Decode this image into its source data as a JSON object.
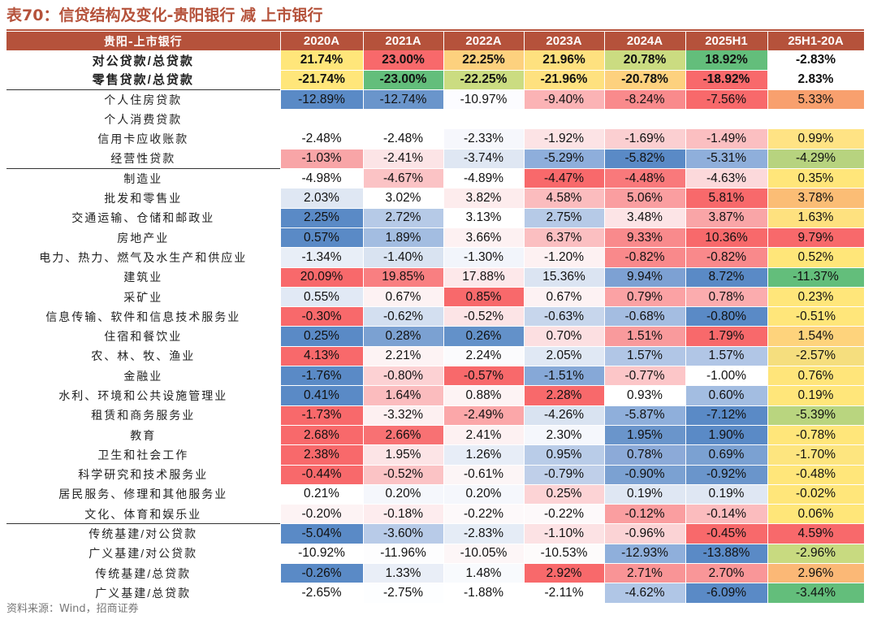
{
  "title": "表70：信贷结构及变化-贵阳银行 减 上市银行",
  "header": {
    "label": "贵阳-上市银行",
    "columns": [
      "2020A",
      "2021A",
      "2022A",
      "2023A",
      "2024A",
      "2025H1",
      "25H1-20A"
    ]
  },
  "rows": [
    {
      "label": "对公贷款/总贷款",
      "bold": true,
      "values": [
        "21.74%",
        "23.00%",
        "22.25%",
        "21.96%",
        "20.78%",
        "18.92%",
        "-2.83%"
      ],
      "colors": [
        "#ffe67a",
        "#f8696b",
        "#fdd17e",
        "#fee17f",
        "#cbdc81",
        "#63be7b",
        "#ffffff"
      ]
    },
    {
      "label": "零售贷款/总贷款",
      "bold": true,
      "values": [
        "-21.74%",
        "-23.00%",
        "-22.25%",
        "-21.96%",
        "-20.78%",
        "-18.92%",
        "2.83%"
      ],
      "colors": [
        "#ffe67a",
        "#63be7b",
        "#cbdc81",
        "#fee17f",
        "#fdd17e",
        "#f8696b",
        "#ffffff"
      ]
    },
    {
      "label": "个人住房贷款",
      "sep": true,
      "values": [
        "-12.89%",
        "-12.74%",
        "-10.97%",
        "-9.40%",
        "-8.24%",
        "-7.56%",
        "5.33%"
      ],
      "colors": [
        "#5a8ac6",
        "#6a95cb",
        "#fcfcff",
        "#fbb3b5",
        "#f98a8c",
        "#f8696b",
        "#f8a06e"
      ]
    },
    {
      "label": "个人消费贷款",
      "values": [
        "",
        "",
        "",
        "",
        "",
        "",
        ""
      ],
      "colors": [
        "#ffffff",
        "#ffffff",
        "#ffffff",
        "#ffffff",
        "#ffffff",
        "#ffffff",
        "#ffffff"
      ]
    },
    {
      "label": "信用卡应收账款",
      "values": [
        "-2.48%",
        "-2.48%",
        "-2.33%",
        "-1.92%",
        "-1.69%",
        "-1.49%",
        "0.99%"
      ],
      "colors": [
        "#ffffff",
        "#ffffff",
        "#f6f7fc",
        "#fce3e5",
        "#fbcfd1",
        "#fbbfc1",
        "#ffe384"
      ]
    },
    {
      "label": "经营性贷款",
      "values": [
        "-1.03%",
        "-2.41%",
        "-3.74%",
        "-5.29%",
        "-5.82%",
        "-5.31%",
        "-4.29%"
      ],
      "colors": [
        "#f8a5a7",
        "#fce4e6",
        "#dfe7f3",
        "#8eaedb",
        "#5a8ac6",
        "#8fafdb",
        "#b7d37f"
      ]
    },
    {
      "label": "制造业",
      "sep": true,
      "values": [
        "-4.98%",
        "-4.67%",
        "-4.89%",
        "-4.47%",
        "-4.48%",
        "-4.63%",
        "0.35%"
      ],
      "colors": [
        "#ffffff",
        "#fbc3c5",
        "#ffffff",
        "#f8696b",
        "#f9797b",
        "#fcd9db",
        "#ffe67a"
      ]
    },
    {
      "label": "批发和零售业",
      "values": [
        "2.03%",
        "3.02%",
        "3.82%",
        "4.58%",
        "5.06%",
        "5.81%",
        "3.78%"
      ],
      "colors": [
        "#dfe7f3",
        "#ffffff",
        "#fdeced",
        "#fbbcbe",
        "#fa9ea0",
        "#f8696b",
        "#fbbd75"
      ]
    },
    {
      "label": "交通运输、仓储和邮政业",
      "values": [
        "2.25%",
        "2.72%",
        "3.13%",
        "2.75%",
        "3.48%",
        "3.87%",
        "1.63%"
      ],
      "colors": [
        "#5a8ac6",
        "#b6cae7",
        "#ffffff",
        "#b6cae7",
        "#fce4e6",
        "#f9a5a7",
        "#fee17f"
      ]
    },
    {
      "label": "房地产业",
      "values": [
        "0.57%",
        "1.89%",
        "3.66%",
        "6.37%",
        "9.33%",
        "10.36%",
        "9.79%"
      ],
      "colors": [
        "#5a8ac6",
        "#a3bde1",
        "#fdf1f2",
        "#fbbfc1",
        "#f98a8c",
        "#f8696b",
        "#f8696b"
      ]
    },
    {
      "label": "电力、热力、燃气及水生产和供应业",
      "values": [
        "-1.34%",
        "-1.40%",
        "-1.30%",
        "-1.20%",
        "-0.82%",
        "-0.82%",
        "0.52%"
      ],
      "colors": [
        "#e8eef7",
        "#d9e3f1",
        "#f2f5fb",
        "#fdf1f2",
        "#f9898b",
        "#f9898b",
        "#ffe679"
      ]
    },
    {
      "label": "建筑业",
      "values": [
        "20.09%",
        "19.85%",
        "17.88%",
        "15.36%",
        "9.94%",
        "8.72%",
        "-11.37%"
      ],
      "colors": [
        "#f8696b",
        "#f97f81",
        "#fde8ea",
        "#dbe4f2",
        "#7da1d3",
        "#5a8ac6",
        "#63be7b"
      ]
    },
    {
      "label": "采矿业",
      "values": [
        "0.55%",
        "0.67%",
        "0.85%",
        "0.67%",
        "0.79%",
        "0.78%",
        "0.23%"
      ],
      "colors": [
        "#e1e9f5",
        "#fdf2f3",
        "#f8696b",
        "#fdf2f3",
        "#fba2a4",
        "#fbacae",
        "#ffe67a"
      ]
    },
    {
      "label": "信息传输、软件和信息技术服务业",
      "values": [
        "-0.30%",
        "-0.62%",
        "-0.52%",
        "-0.63%",
        "-0.68%",
        "-0.80%",
        "-0.51%"
      ],
      "colors": [
        "#f8696b",
        "#d3dff0",
        "#fce4e6",
        "#c7d6ec",
        "#a4bde1",
        "#5a8ac6",
        "#ffe67a"
      ]
    },
    {
      "label": "住宿和餐饮业",
      "values": [
        "0.25%",
        "0.28%",
        "0.26%",
        "0.70%",
        "1.51%",
        "1.79%",
        "1.54%"
      ],
      "colors": [
        "#5a8ac6",
        "#7ba1d2",
        "#6391c9",
        "#fcdfe1",
        "#f99a9c",
        "#f8696b",
        "#fed37c"
      ]
    },
    {
      "label": "农、林、牧、渔业",
      "values": [
        "4.13%",
        "2.21%",
        "2.24%",
        "2.05%",
        "1.57%",
        "1.57%",
        "-2.57%"
      ],
      "colors": [
        "#f8696b",
        "#fdf3f4",
        "#fbfbfd",
        "#e0e8f4",
        "#b1c6e6",
        "#b1c6e6",
        "#f5de7e"
      ]
    },
    {
      "label": "金融业",
      "values": [
        "-1.76%",
        "-0.80%",
        "-0.57%",
        "-1.51%",
        "-0.77%",
        "-1.00%",
        "0.76%"
      ],
      "colors": [
        "#5a8ac6",
        "#fcd1d3",
        "#f8696b",
        "#86a8d7",
        "#fcc6c8",
        "#ffffff",
        "#ffe57a"
      ]
    },
    {
      "label": "水利、环境和公共设施管理业",
      "values": [
        "0.41%",
        "1.64%",
        "0.88%",
        "2.28%",
        "0.93%",
        "0.60%",
        "0.19%"
      ],
      "colors": [
        "#5a8ac6",
        "#fbbcbe",
        "#fdf3f4",
        "#f8696b",
        "#ffffff",
        "#a3bde1",
        "#ffe67a"
      ]
    },
    {
      "label": "租赁和商务服务业",
      "values": [
        "-1.73%",
        "-3.32%",
        "-2.49%",
        "-4.26%",
        "-5.87%",
        "-7.12%",
        "-5.39%"
      ],
      "colors": [
        "#f8696b",
        "#fdf0f1",
        "#fba7a9",
        "#d9e3f1",
        "#8fafdb",
        "#5a8ac6",
        "#b9d57f"
      ]
    },
    {
      "label": "教育",
      "values": [
        "2.68%",
        "2.66%",
        "2.41%",
        "2.30%",
        "1.95%",
        "1.90%",
        "-0.78%"
      ],
      "colors": [
        "#f8696b",
        "#f87173",
        "#fdf1f2",
        "#f5f7fc",
        "#6a95cb",
        "#5a8ac6",
        "#ffe67a"
      ]
    },
    {
      "label": "卫生和社会工作",
      "values": [
        "2.38%",
        "1.95%",
        "1.26%",
        "0.95%",
        "0.78%",
        "0.69%",
        "-1.70%"
      ],
      "colors": [
        "#f8696b",
        "#fce4e6",
        "#e7edf7",
        "#b9cce8",
        "#8caad8",
        "#7ba1d2",
        "#fde57f"
      ]
    },
    {
      "label": "科学研究和技术服务业",
      "values": [
        "-0.44%",
        "-0.52%",
        "-0.61%",
        "-0.79%",
        "-0.90%",
        "-0.92%",
        "-0.48%"
      ],
      "colors": [
        "#f8696b",
        "#fbc3c5",
        "#fcf5f6",
        "#bfcfe9",
        "#7ba1d2",
        "#6a95cb",
        "#ffe67a"
      ]
    },
    {
      "label": "居民服务、修理和其他服务业",
      "values": [
        "0.21%",
        "0.20%",
        "0.20%",
        "0.25%",
        "0.19%",
        "0.19%",
        "-0.02%"
      ],
      "colors": [
        "#ffffff",
        "#f5f7fc",
        "#f5f7fc",
        "#fcd3d5",
        "#dfe7f3",
        "#dfe7f3",
        "#ffe67a"
      ]
    },
    {
      "label": "文化、体育和娱乐业",
      "values": [
        "-0.20%",
        "-0.18%",
        "-0.22%",
        "-0.22%",
        "-0.12%",
        "-0.14%",
        "0.06%"
      ],
      "colors": [
        "#fdf3f4",
        "#fdecee",
        "#fdf9fa",
        "#fdf9fa",
        "#fa9ea0",
        "#fbbcbe",
        "#ffe679"
      ]
    },
    {
      "label": "传统基建/对公贷款",
      "sep": true,
      "values": [
        "-5.04%",
        "-3.60%",
        "-2.83%",
        "-1.10%",
        "-0.96%",
        "-0.45%",
        "4.59%"
      ],
      "colors": [
        "#5a8ac6",
        "#b8cbe8",
        "#e5ecf6",
        "#fce2e4",
        "#fbd3d5",
        "#f8696b",
        "#f8696b"
      ]
    },
    {
      "label": "广义基建/对公贷款",
      "values": [
        "-10.92%",
        "-11.96%",
        "-10.05%",
        "-10.53%",
        "-12.93%",
        "-13.88%",
        "-2.96%"
      ],
      "colors": [
        "#ffffff",
        "#fdfdfe",
        "#fdf6f7",
        "#fdfbfb",
        "#8fafdb",
        "#5a8ac6",
        "#c8da80"
      ]
    },
    {
      "label": "传统基建/总贷款",
      "values": [
        "-0.26%",
        "1.33%",
        "1.48%",
        "2.92%",
        "2.71%",
        "2.70%",
        "2.96%"
      ],
      "colors": [
        "#5a8ac6",
        "#e9eef7",
        "#f8fafd",
        "#f8696b",
        "#f99496",
        "#f99698",
        "#fbb876"
      ]
    },
    {
      "label": "广义基建/总贷款",
      "values": [
        "-2.65%",
        "-2.75%",
        "-1.88%",
        "-2.11%",
        "-4.62%",
        "-6.09%",
        "-3.44%"
      ],
      "colors": [
        "#ffffff",
        "#fdfeff",
        "#ffffff",
        "#ffffff",
        "#b0c6e6",
        "#5a8ac6",
        "#63be7b"
      ]
    }
  ],
  "source": "资料来源：Wind，招商证券"
}
